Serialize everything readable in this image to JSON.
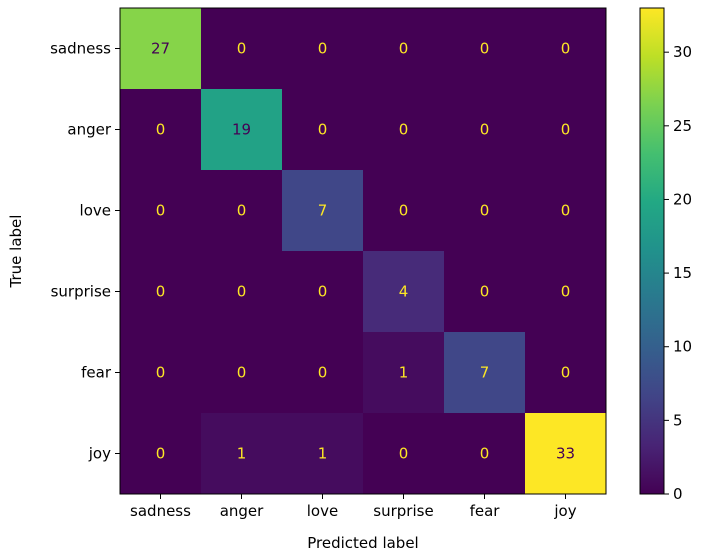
{
  "chart_data": {
    "type": "heatmap",
    "title": "",
    "xlabel": "Predicted label",
    "ylabel": "True label",
    "x_categories": [
      "sadness",
      "anger",
      "love",
      "surprise",
      "fear",
      "joy"
    ],
    "y_categories": [
      "sadness",
      "anger",
      "love",
      "surprise",
      "fear",
      "joy"
    ],
    "values": [
      [
        27,
        0,
        0,
        0,
        0,
        0
      ],
      [
        0,
        19,
        0,
        0,
        0,
        0
      ],
      [
        0,
        0,
        7,
        0,
        0,
        0
      ],
      [
        0,
        0,
        0,
        4,
        0,
        0
      ],
      [
        0,
        0,
        0,
        1,
        7,
        0
      ],
      [
        0,
        1,
        1,
        0,
        0,
        33
      ]
    ],
    "colormap": "viridis",
    "colorbar": {
      "range": [
        0,
        33
      ],
      "ticks": [
        0,
        5,
        10,
        15,
        20,
        25,
        30
      ]
    },
    "text_colors": {
      "on_dark": "#fde725",
      "on_light": "#440154"
    }
  }
}
